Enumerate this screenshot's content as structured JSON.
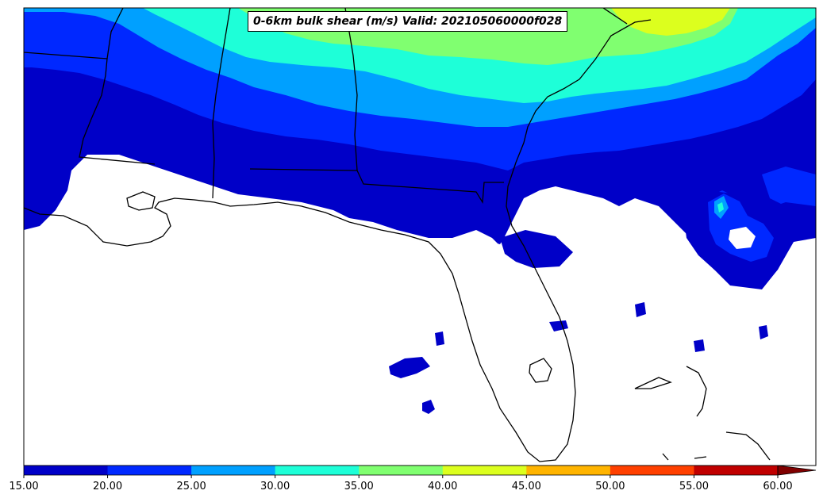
{
  "title": "0-6km bulk shear (m/s) Valid: 202105060000f028",
  "legend": {
    "ticks": [
      "15.00",
      "20.00",
      "25.00",
      "30.00",
      "35.00",
      "40.00",
      "45.00",
      "50.00",
      "55.00",
      "60.00"
    ],
    "levels": [
      15,
      20,
      25,
      30,
      35,
      40,
      45,
      50,
      55,
      60
    ],
    "colors": [
      "#0000c8",
      "#0028ff",
      "#00a0ff",
      "#1effd8",
      "#80ff70",
      "#dcff1e",
      "#ffb400",
      "#ff4000",
      "#c00000"
    ],
    "extend": "max",
    "extend_color": "#800000"
  },
  "land_color": "#ffffff",
  "boundary_color": "#000000"
}
